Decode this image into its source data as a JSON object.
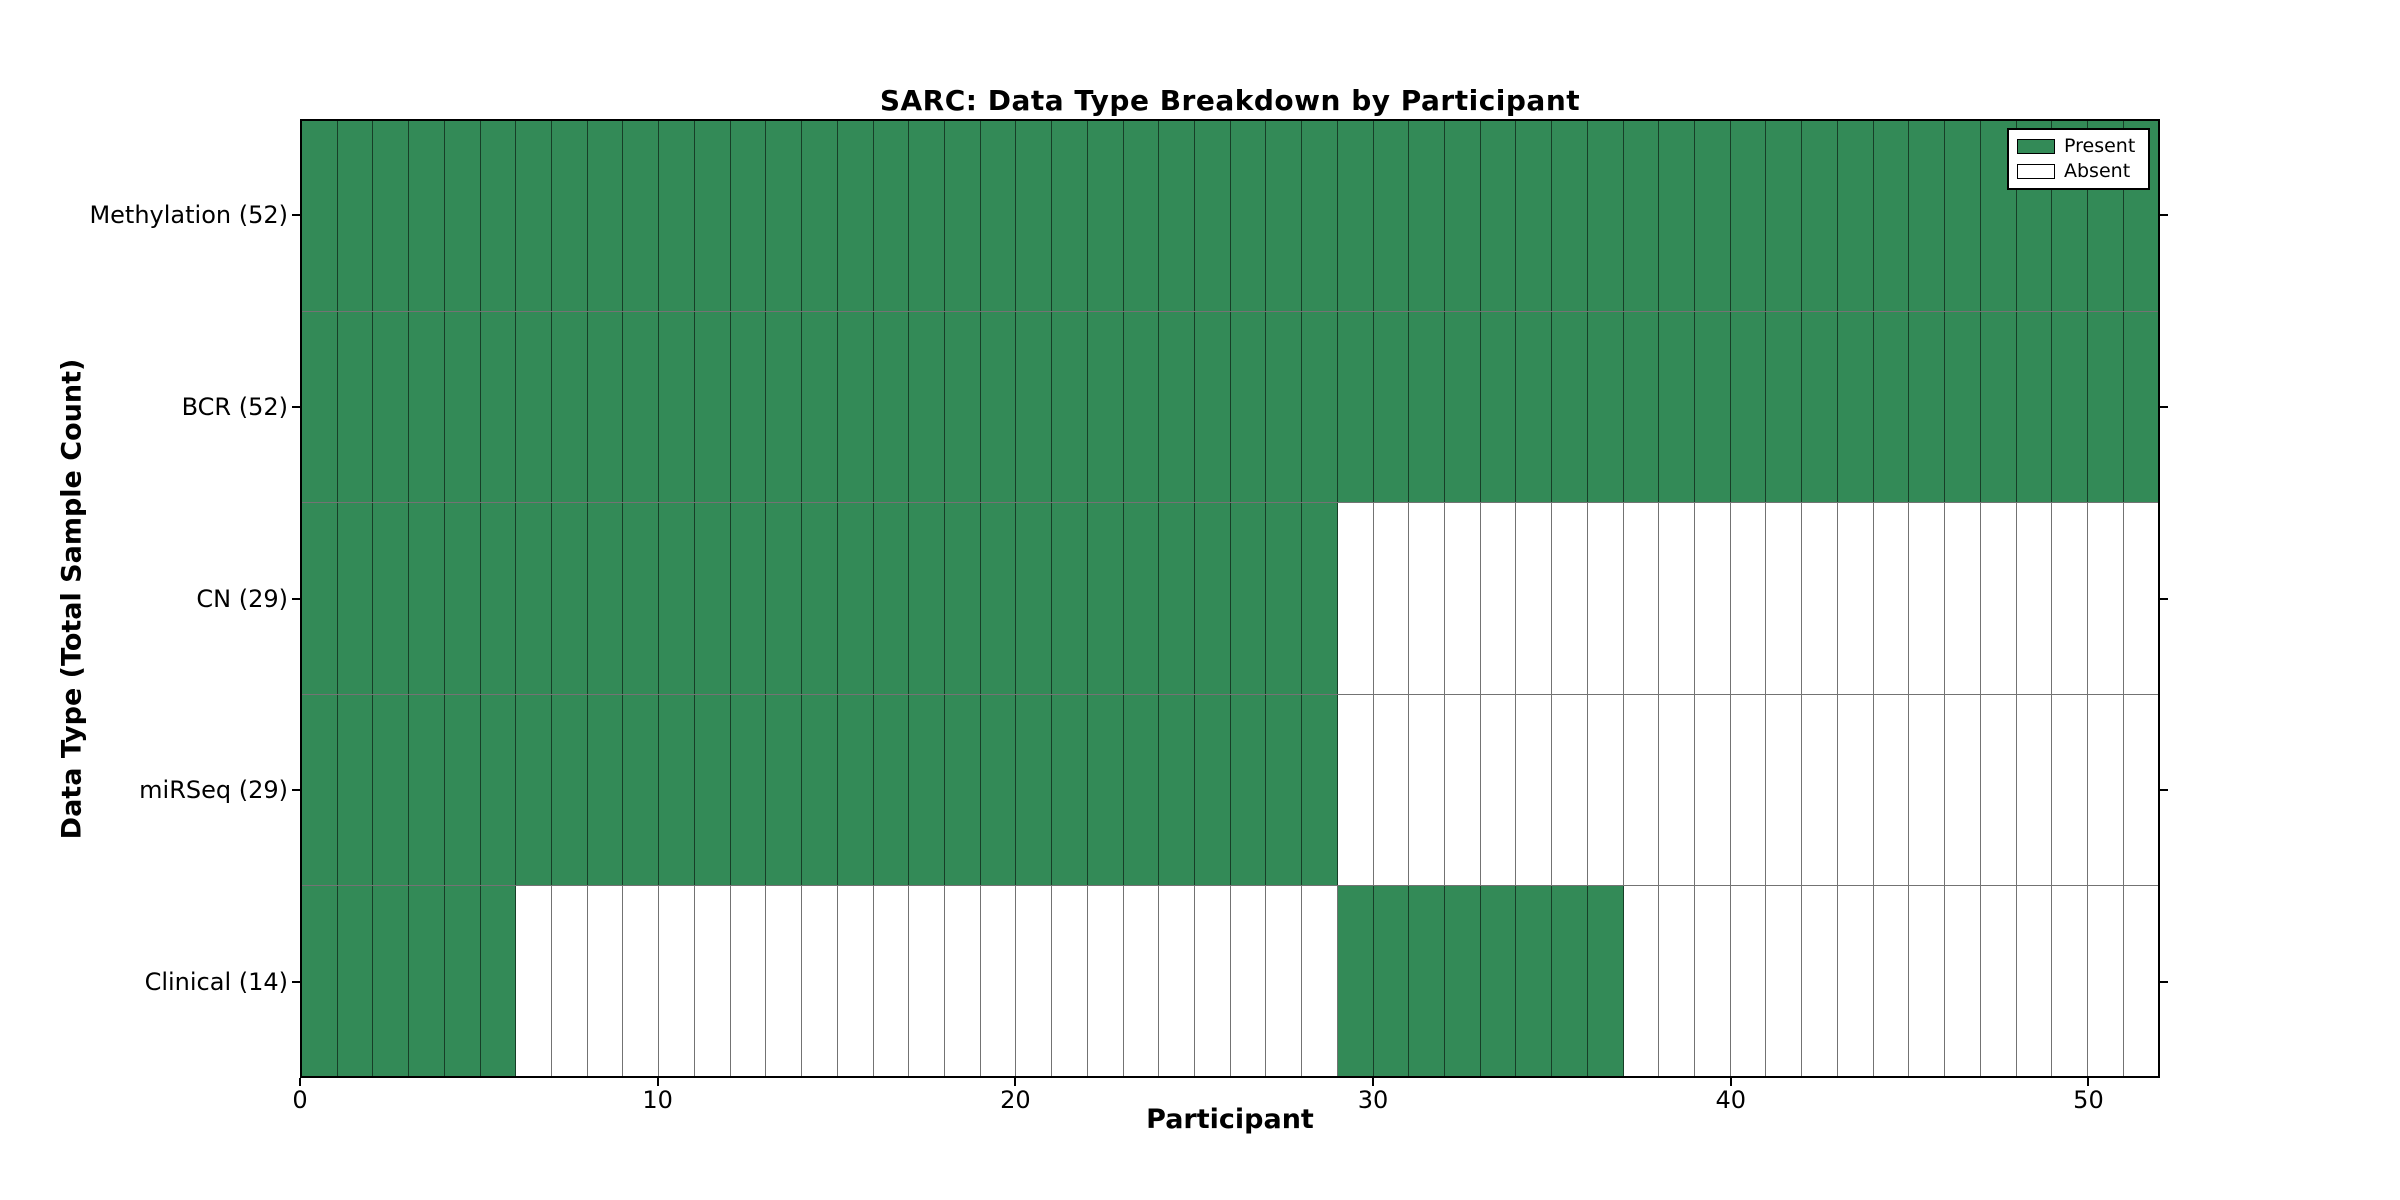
{
  "title": "SARC: Data Type Breakdown by Participant",
  "axes": {
    "xlabel": "Participant",
    "ylabel": "Data Type (Total Sample Count)"
  },
  "legend": {
    "items": [
      {
        "label": "Present",
        "key": "present"
      },
      {
        "label": "Absent",
        "key": "absent"
      }
    ]
  },
  "colors": {
    "present": "#338a57",
    "absent": "#ffffff",
    "cell_border": "rgba(0,0,0,0.55)",
    "axis": "#000000"
  },
  "chart_data": {
    "type": "heatmap",
    "title": "SARC: Data Type Breakdown by Participant",
    "xlabel": "Participant",
    "ylabel": "Data Type (Total Sample Count)",
    "x_range": [
      0,
      52
    ],
    "x_ticks": [
      0,
      10,
      20,
      30,
      40,
      50
    ],
    "participants": 52,
    "cell_values": {
      "present": "Present",
      "absent": "Absent"
    },
    "legend_position": "upper right",
    "grid": "cell-borders",
    "rows": [
      {
        "label": "Methylation (52)",
        "data_type": "Methylation",
        "total_samples": 52,
        "present_ranges": [
          [
            0,
            51
          ]
        ]
      },
      {
        "label": "BCR (52)",
        "data_type": "BCR",
        "total_samples": 52,
        "present_ranges": [
          [
            0,
            51
          ]
        ]
      },
      {
        "label": "CN (29)",
        "data_type": "CN",
        "total_samples": 29,
        "present_ranges": [
          [
            0,
            28
          ]
        ]
      },
      {
        "label": "miRSeq (29)",
        "data_type": "miRSeq",
        "total_samples": 29,
        "present_ranges": [
          [
            0,
            28
          ]
        ]
      },
      {
        "label": "Clinical (14)",
        "data_type": "Clinical",
        "total_samples": 14,
        "present_ranges": [
          [
            0,
            5
          ],
          [
            29,
            36
          ]
        ]
      }
    ]
  }
}
